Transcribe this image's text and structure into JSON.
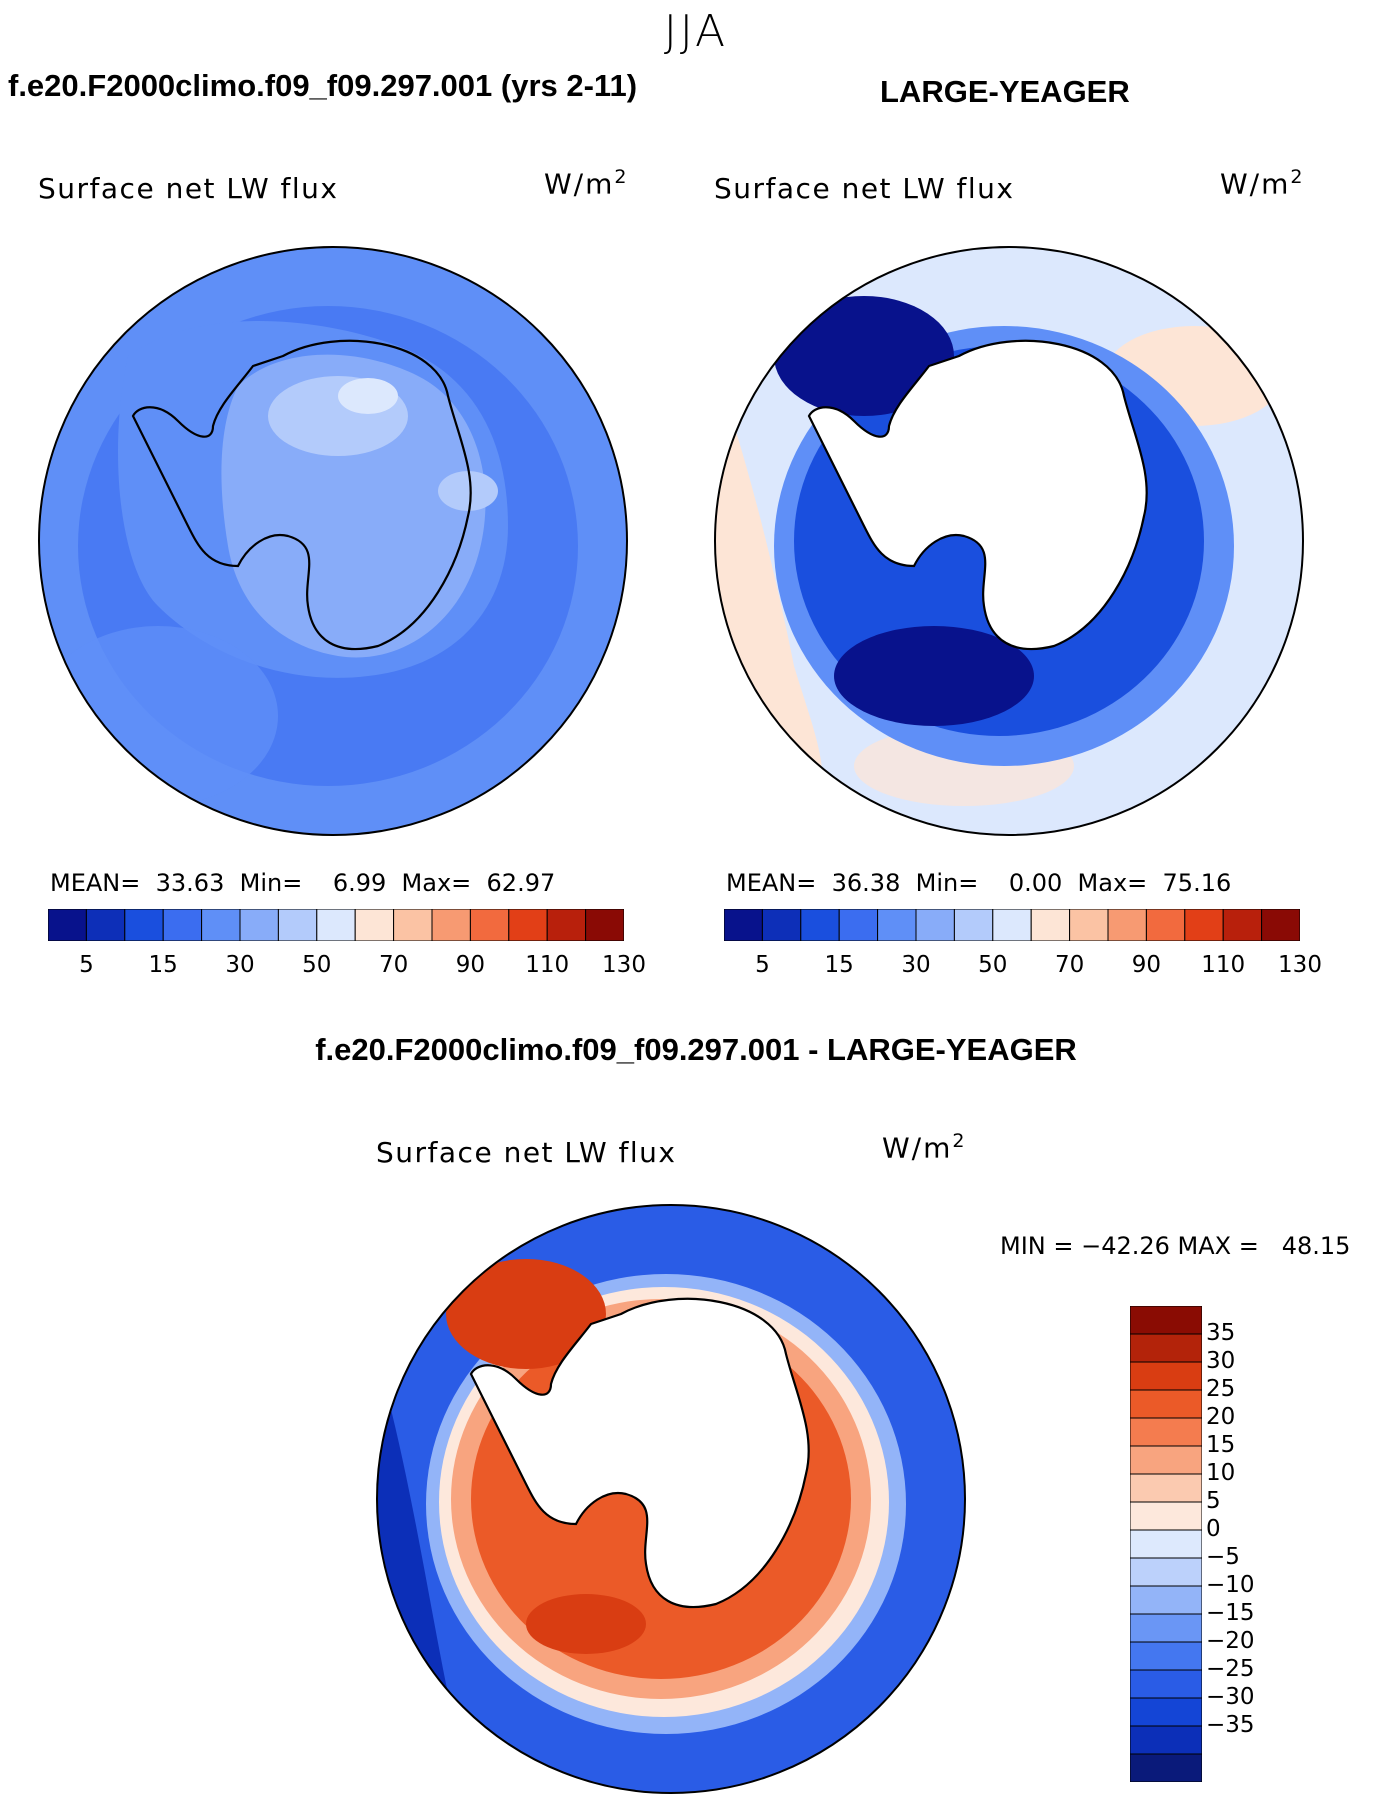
{
  "season": "JJA",
  "colors": {
    "abs_scale": [
      "#08128c",
      "#0d2fb8",
      "#1a4fde",
      "#3b6df0",
      "#5f8ff7",
      "#88acf9",
      "#b3cbfb",
      "#dce8fd",
      "#fde5d6",
      "#fbc3a4",
      "#f79a72",
      "#f26a3e",
      "#e23f17",
      "#b8200c",
      "#8a0a05"
    ],
    "diff_scale": [
      "#0a1a7a",
      "#0c2fb8",
      "#1445d6",
      "#2a5ce6",
      "#4477f0",
      "#6a96f5",
      "#93b4f8",
      "#bcd1fb",
      "#dde9fd",
      "#fde8dc",
      "#fbcab0",
      "#f8a47f",
      "#f47c4f",
      "#eb5a28",
      "#d93d12",
      "#b3230a",
      "#8a0c03"
    ],
    "land": "#ffffff",
    "coast": "#000000"
  },
  "panels": {
    "left": {
      "title": "f.e20.F2000climo.f09_f09.297.001 (yrs 2-11)",
      "label": "Surface net LW flux",
      "units_base": "W/m",
      "units_exp": "2",
      "stats": {
        "mean_label": "MEAN=",
        "mean": "33.63",
        "min_label": "Min=",
        "min": "6.99",
        "max_label": "Max=",
        "max": "62.97"
      },
      "ticks": [
        "5",
        "15",
        "30",
        "50",
        "70",
        "90",
        "110",
        "130"
      ]
    },
    "right": {
      "title": "LARGE-YEAGER",
      "label": "Surface net LW flux",
      "units_base": "W/m",
      "units_exp": "2",
      "stats": {
        "mean_label": "MEAN=",
        "mean": "36.38",
        "min_label": "Min=",
        "min": "0.00",
        "max_label": "Max=",
        "max": "75.16"
      },
      "ticks": [
        "5",
        "15",
        "30",
        "50",
        "70",
        "90",
        "110",
        "130"
      ]
    },
    "diff": {
      "title": "f.e20.F2000climo.f09_f09.297.001 - LARGE-YEAGER",
      "label": "Surface net LW flux",
      "units_base": "W/m",
      "units_exp": "2",
      "min_max": "MIN = −42.26 MAX =   48.15",
      "ticks": [
        "35",
        "30",
        "25",
        "20",
        "15",
        "10",
        "5",
        "0",
        "−5",
        "−10",
        "−15",
        "−20",
        "−25",
        "−30",
        "−35"
      ]
    }
  }
}
